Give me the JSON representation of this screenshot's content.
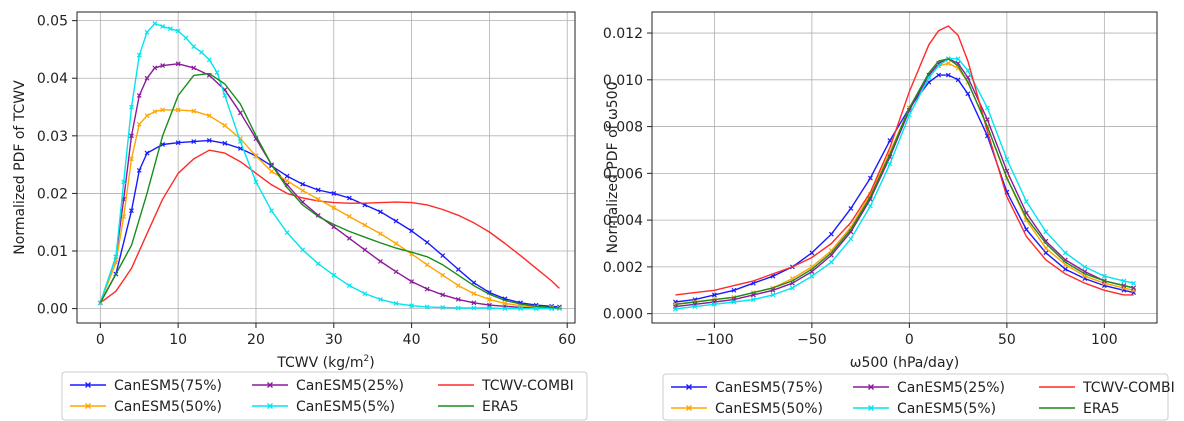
{
  "chart_data": [
    {
      "type": "line",
      "title": "",
      "xlabel": "TCWV (kg/m",
      "xlabel_sup": "2",
      "xlabel_end": ")",
      "ylabel": "Normalized PDF of TCWV",
      "xlim": [
        -3,
        61
      ],
      "ylim": [
        -0.0025,
        0.0515
      ],
      "xticks": [
        0,
        10,
        20,
        30,
        40,
        50,
        60
      ],
      "xtick_labels": [
        "0",
        "10",
        "20",
        "30",
        "40",
        "50",
        "60"
      ],
      "yticks": [
        0,
        0.01,
        0.02,
        0.03,
        0.04,
        0.05
      ],
      "ytick_labels": [
        "0.00",
        "0.01",
        "0.02",
        "0.03",
        "0.04",
        "0.05"
      ],
      "grid": true,
      "legend_placement": "below",
      "series": [
        {
          "name": "CanESM5(75%)",
          "color": "#1a1aff",
          "marker": true,
          "x": [
            0,
            2,
            4,
            5,
            6,
            8,
            10,
            12,
            14,
            16,
            18,
            20,
            22,
            24,
            26,
            28,
            30,
            32,
            34,
            36,
            38,
            40,
            42,
            44,
            46,
            48,
            50,
            52,
            54,
            56,
            58,
            59
          ],
          "y": [
            0.001,
            0.006,
            0.017,
            0.024,
            0.027,
            0.0285,
            0.0288,
            0.029,
            0.0292,
            0.0287,
            0.0278,
            0.0265,
            0.0248,
            0.023,
            0.0216,
            0.0206,
            0.02,
            0.0192,
            0.018,
            0.0168,
            0.0152,
            0.0135,
            0.0115,
            0.0092,
            0.0068,
            0.0045,
            0.0028,
            0.0017,
            0.001,
            0.0006,
            0.0004,
            0.0003
          ]
        },
        {
          "name": "CanESM5(25%)",
          "color": "#8b1a9b",
          "marker": true,
          "x": [
            0,
            2,
            3,
            4,
            5,
            6,
            7,
            8,
            10,
            12,
            14,
            16,
            18,
            20,
            22,
            24,
            26,
            28,
            30,
            32,
            34,
            36,
            38,
            40,
            42,
            44,
            46,
            48,
            50,
            52,
            54,
            56,
            58,
            59
          ],
          "y": [
            0.001,
            0.009,
            0.019,
            0.03,
            0.037,
            0.04,
            0.0418,
            0.0422,
            0.0425,
            0.0418,
            0.0405,
            0.038,
            0.034,
            0.0295,
            0.025,
            0.0215,
            0.0185,
            0.0162,
            0.0142,
            0.0122,
            0.0102,
            0.0082,
            0.0064,
            0.0047,
            0.0034,
            0.0024,
            0.0016,
            0.001,
            0.0006,
            0.0004,
            0.0002,
            0.0001,
            0.0001,
            0.0001
          ]
        },
        {
          "name": "TCWV-COMBI",
          "color": "#ff2a2a",
          "marker": false,
          "x": [
            0,
            2,
            4,
            6,
            8,
            10,
            12,
            14,
            16,
            18,
            20,
            22,
            24,
            26,
            28,
            30,
            32,
            34,
            36,
            38,
            40,
            42,
            44,
            46,
            48,
            50,
            52,
            54,
            56,
            58,
            59
          ],
          "y": [
            0.001,
            0.003,
            0.007,
            0.013,
            0.019,
            0.0235,
            0.026,
            0.0275,
            0.027,
            0.0255,
            0.0235,
            0.0215,
            0.02,
            0.0192,
            0.0187,
            0.0184,
            0.0183,
            0.0183,
            0.0184,
            0.0185,
            0.0184,
            0.018,
            0.0172,
            0.0162,
            0.0149,
            0.0133,
            0.0113,
            0.0092,
            0.007,
            0.0048,
            0.0035
          ]
        },
        {
          "name": "CanESM5(50%)",
          "color": "#ffa500",
          "marker": true,
          "x": [
            0,
            2,
            3,
            4,
            5,
            6,
            7,
            8,
            10,
            12,
            14,
            16,
            18,
            20,
            22,
            24,
            26,
            28,
            30,
            32,
            34,
            36,
            38,
            40,
            42,
            44,
            46,
            48,
            50,
            52,
            54,
            56,
            58,
            59
          ],
          "y": [
            0.001,
            0.008,
            0.016,
            0.026,
            0.032,
            0.0335,
            0.0342,
            0.0345,
            0.0345,
            0.0343,
            0.0335,
            0.0318,
            0.0295,
            0.0265,
            0.0238,
            0.0222,
            0.0205,
            0.019,
            0.0175,
            0.016,
            0.0145,
            0.013,
            0.0113,
            0.0095,
            0.0076,
            0.0058,
            0.004,
            0.0026,
            0.0016,
            0.0009,
            0.0005,
            0.0003,
            0.0002,
            0.0001
          ]
        },
        {
          "name": "CanESM5(5%)",
          "color": "#00e5ee",
          "marker": true,
          "x": [
            0,
            2,
            3,
            4,
            5,
            6,
            7,
            8,
            9,
            10,
            11,
            12,
            13,
            14,
            15,
            16,
            18,
            20,
            22,
            24,
            26,
            28,
            30,
            32,
            34,
            36,
            38,
            40,
            42,
            44,
            46,
            48,
            50,
            52,
            54,
            56,
            58,
            59
          ],
          "y": [
            0.001,
            0.009,
            0.022,
            0.035,
            0.044,
            0.048,
            0.0495,
            0.049,
            0.0486,
            0.0482,
            0.047,
            0.0455,
            0.0445,
            0.0432,
            0.041,
            0.037,
            0.029,
            0.022,
            0.017,
            0.0132,
            0.0102,
            0.0078,
            0.0058,
            0.004,
            0.0026,
            0.0016,
            0.0009,
            0.0005,
            0.0003,
            0.0002,
            0.0001,
            0.0001,
            0.0001,
            0.0,
            0.0,
            0.0,
            0.0,
            0.0
          ]
        },
        {
          "name": "ERA5",
          "color": "#1a8c1a",
          "marker": false,
          "x": [
            0,
            2,
            4,
            6,
            8,
            10,
            12,
            14,
            16,
            18,
            20,
            22,
            24,
            26,
            28,
            30,
            32,
            34,
            36,
            38,
            40,
            42,
            44,
            46,
            48,
            50,
            52,
            54,
            56,
            58,
            59
          ],
          "y": [
            0.001,
            0.006,
            0.011,
            0.02,
            0.03,
            0.037,
            0.0405,
            0.0408,
            0.039,
            0.0355,
            0.03,
            0.025,
            0.021,
            0.018,
            0.016,
            0.0146,
            0.0134,
            0.0124,
            0.0114,
            0.0105,
            0.0098,
            0.009,
            0.0076,
            0.0058,
            0.004,
            0.0025,
            0.0014,
            0.0008,
            0.0004,
            0.0002,
            0.0001
          ]
        }
      ]
    },
    {
      "type": "line",
      "title": "",
      "xlabel": "ω500 (hPa/day)",
      "ylabel": "Normalized PDF of ω500",
      "xlim": [
        -132,
        127
      ],
      "ylim": [
        -0.0004,
        0.0129
      ],
      "xticks": [
        -100,
        -50,
        0,
        50,
        100
      ],
      "xtick_labels": [
        "−100",
        "−50",
        "0",
        "50",
        "100"
      ],
      "yticks": [
        0,
        0.002,
        0.004,
        0.006,
        0.008,
        0.01,
        0.012
      ],
      "ytick_labels": [
        "0.000",
        "0.002",
        "0.004",
        "0.006",
        "0.008",
        "0.010",
        "0.012"
      ],
      "grid": true,
      "legend_placement": "below",
      "series": [
        {
          "name": "CanESM5(75%)",
          "color": "#1a1aff",
          "marker": true,
          "x": [
            -120,
            -110,
            -100,
            -90,
            -80,
            -70,
            -60,
            -50,
            -40,
            -30,
            -20,
            -10,
            0,
            10,
            15,
            20,
            25,
            30,
            40,
            50,
            60,
            70,
            80,
            90,
            100,
            110,
            115
          ],
          "y": [
            0.0005,
            0.0006,
            0.0008,
            0.001,
            0.0013,
            0.0016,
            0.002,
            0.0026,
            0.0034,
            0.0045,
            0.0058,
            0.0074,
            0.0088,
            0.0099,
            0.0102,
            0.0102,
            0.01,
            0.0094,
            0.0076,
            0.0052,
            0.0036,
            0.0026,
            0.0019,
            0.0015,
            0.0012,
            0.001,
            0.0009
          ]
        },
        {
          "name": "CanESM5(50%)",
          "color": "#ffa500",
          "marker": true,
          "x": [
            -120,
            -110,
            -100,
            -90,
            -80,
            -70,
            -60,
            -50,
            -40,
            -30,
            -20,
            -10,
            0,
            10,
            15,
            20,
            25,
            30,
            40,
            50,
            60,
            70,
            80,
            90,
            100,
            110,
            115
          ],
          "y": [
            0.0004,
            0.0005,
            0.0006,
            0.0007,
            0.0009,
            0.0011,
            0.0015,
            0.002,
            0.0027,
            0.0037,
            0.0051,
            0.0069,
            0.0088,
            0.0102,
            0.0106,
            0.0107,
            0.0105,
            0.0099,
            0.008,
            0.0058,
            0.004,
            0.0028,
            0.0021,
            0.0016,
            0.0013,
            0.0011,
            0.001
          ]
        },
        {
          "name": "CanESM5(25%)",
          "color": "#8b1a9b",
          "marker": true,
          "x": [
            -120,
            -110,
            -100,
            -90,
            -80,
            -70,
            -60,
            -50,
            -40,
            -30,
            -20,
            -10,
            0,
            10,
            15,
            20,
            25,
            30,
            40,
            50,
            60,
            70,
            80,
            90,
            100,
            110,
            115
          ],
          "y": [
            0.0003,
            0.0004,
            0.0005,
            0.0006,
            0.0008,
            0.001,
            0.0013,
            0.0018,
            0.0025,
            0.0035,
            0.0049,
            0.0067,
            0.0087,
            0.0102,
            0.0107,
            0.0109,
            0.0107,
            0.0101,
            0.0083,
            0.0061,
            0.0043,
            0.0031,
            0.0023,
            0.0018,
            0.0014,
            0.0012,
            0.0011
          ]
        },
        {
          "name": "CanESM5(5%)",
          "color": "#00e5ee",
          "marker": true,
          "x": [
            -120,
            -110,
            -100,
            -90,
            -80,
            -70,
            -60,
            -50,
            -40,
            -30,
            -20,
            -10,
            0,
            10,
            15,
            20,
            25,
            30,
            40,
            50,
            60,
            70,
            80,
            90,
            100,
            110,
            115
          ],
          "y": [
            0.0002,
            0.0003,
            0.0004,
            0.0005,
            0.0006,
            0.0008,
            0.0011,
            0.0016,
            0.0022,
            0.0032,
            0.0046,
            0.0064,
            0.0085,
            0.0101,
            0.0106,
            0.0109,
            0.0109,
            0.0104,
            0.0088,
            0.0066,
            0.0048,
            0.0035,
            0.0026,
            0.002,
            0.0016,
            0.0014,
            0.0013
          ]
        },
        {
          "name": "TCWV-COMBI",
          "color": "#ff2a2a",
          "marker": false,
          "x": [
            -120,
            -110,
            -100,
            -90,
            -80,
            -70,
            -60,
            -50,
            -40,
            -30,
            -20,
            -10,
            0,
            10,
            15,
            20,
            25,
            30,
            40,
            50,
            60,
            70,
            80,
            90,
            100,
            110,
            115
          ],
          "y": [
            0.0008,
            0.0009,
            0.001,
            0.0012,
            0.0014,
            0.0017,
            0.002,
            0.0024,
            0.003,
            0.0039,
            0.0052,
            0.0071,
            0.0095,
            0.0115,
            0.0121,
            0.0123,
            0.0119,
            0.0108,
            0.0078,
            0.005,
            0.0033,
            0.0023,
            0.0017,
            0.0013,
            0.001,
            0.0008,
            0.0008
          ]
        },
        {
          "name": "ERA5",
          "color": "#1a8c1a",
          "marker": false,
          "x": [
            -120,
            -110,
            -100,
            -90,
            -80,
            -70,
            -60,
            -50,
            -40,
            -30,
            -20,
            -10,
            0,
            10,
            15,
            20,
            25,
            30,
            40,
            50,
            60,
            70,
            80,
            90,
            100,
            110,
            115
          ],
          "y": [
            0.0004,
            0.0005,
            0.0006,
            0.0007,
            0.0009,
            0.0011,
            0.0014,
            0.0019,
            0.0026,
            0.0036,
            0.005,
            0.0068,
            0.0088,
            0.0103,
            0.0108,
            0.0109,
            0.0106,
            0.0099,
            0.008,
            0.0058,
            0.0041,
            0.003,
            0.0022,
            0.0017,
            0.0014,
            0.0012,
            0.0011
          ]
        }
      ]
    }
  ],
  "legends": [
    {
      "rows": [
        [
          {
            "name": "CanESM5(75%)",
            "color": "#1a1aff",
            "marker": true
          },
          {
            "name": "CanESM5(25%)",
            "color": "#8b1a9b",
            "marker": true
          },
          {
            "name": "TCWV-COMBI",
            "color": "#ff2a2a",
            "marker": false
          }
        ],
        [
          {
            "name": "CanESM5(50%)",
            "color": "#ffa500",
            "marker": true
          },
          {
            "name": "CanESM5(5%)",
            "color": "#00e5ee",
            "marker": true
          },
          {
            "name": "ERA5",
            "color": "#1a8c1a",
            "marker": false
          }
        ]
      ]
    },
    {
      "rows": [
        [
          {
            "name": "CanESM5(75%)",
            "color": "#1a1aff",
            "marker": true
          },
          {
            "name": "CanESM5(25%)",
            "color": "#8b1a9b",
            "marker": true
          },
          {
            "name": "TCWV-COMBI",
            "color": "#ff2a2a",
            "marker": false
          }
        ],
        [
          {
            "name": "CanESM5(50%)",
            "color": "#ffa500",
            "marker": true
          },
          {
            "name": "CanESM5(5%)",
            "color": "#00e5ee",
            "marker": true
          },
          {
            "name": "ERA5",
            "color": "#1a8c1a",
            "marker": false
          }
        ]
      ]
    }
  ]
}
